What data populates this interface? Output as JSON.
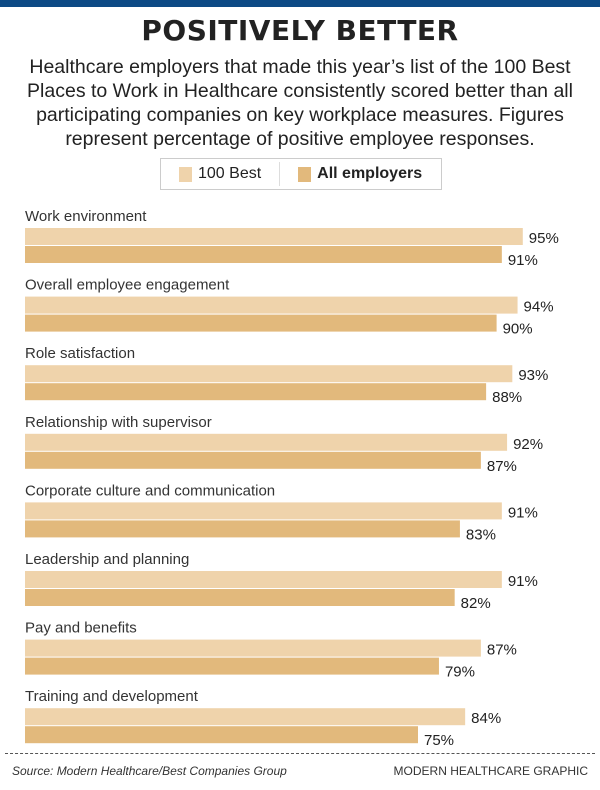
{
  "title": "POSITIVELY BETTER",
  "subtitle": "Healthcare employers that made this year’s list of the 100 Best Places to Work in Healthcare consistently scored better than all participating companies on key workplace measures. Figures represent percentage of positive employee responses.",
  "source": "Source: Modern Healthcare/Best Companies Group",
  "credit": "MODERN HEALTHCARE GRAPHIC",
  "colors": {
    "top_bar": "#0d4a85",
    "best": "#efd3ab",
    "all": "#e2b97c"
  },
  "chart_data": {
    "type": "bar",
    "orientation": "horizontal",
    "legend": "top-center",
    "grid": false,
    "xlim": [
      0,
      100
    ],
    "categories": [
      "Work environment",
      "Overall employee engagement",
      "Role satisfaction",
      "Relationship with supervisor",
      "Corporate culture and communication",
      "Leadership and planning",
      "Pay and benefits",
      "Training and development"
    ],
    "series": [
      {
        "name": "100 Best",
        "color": "#efd3ab",
        "values": [
          95,
          94,
          93,
          92,
          91,
          91,
          87,
          84
        ]
      },
      {
        "name": "All employers",
        "color": "#e2b97c",
        "values": [
          91,
          90,
          88,
          87,
          83,
          82,
          79,
          75
        ]
      }
    ],
    "value_suffix": "%"
  }
}
